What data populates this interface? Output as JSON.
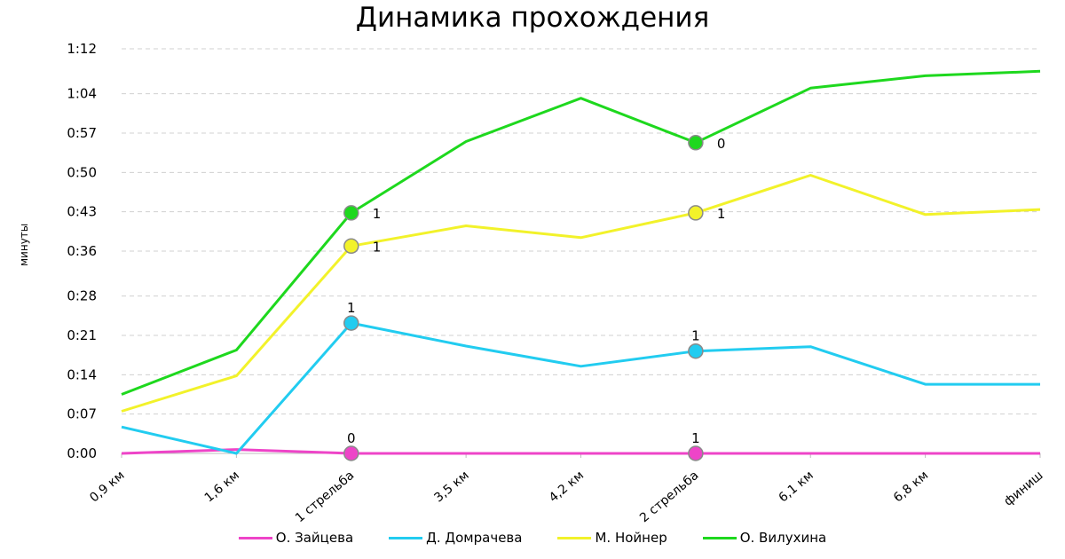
{
  "chart_data": {
    "type": "line",
    "title": "Динамика прохождения",
    "ylabel": "минуты",
    "xlabel": "",
    "categories": [
      "0,9 км",
      "1,6 км",
      "1 стрельба",
      "3,5 км",
      "4,2 км",
      "2 стрельба",
      "6,1 км",
      "6,8 км",
      "финиш"
    ],
    "y_unit": "seconds",
    "y_ticks": [
      {
        "value": 0,
        "label": "0:00"
      },
      {
        "value": 7,
        "label": "0:07"
      },
      {
        "value": 14,
        "label": "0:14"
      },
      {
        "value": 21,
        "label": "0:21"
      },
      {
        "value": 28,
        "label": "0:28"
      },
      {
        "value": 36,
        "label": "0:36"
      },
      {
        "value": 43,
        "label": "0:43"
      },
      {
        "value": 50,
        "label": "0:50"
      },
      {
        "value": 57,
        "label": "0:57"
      },
      {
        "value": 64,
        "label": "1:04"
      },
      {
        "value": 72,
        "label": "1:12"
      }
    ],
    "ylim": [
      0,
      72
    ],
    "grid": true,
    "legend_position": "bottom",
    "series": [
      {
        "name": "О. Зайцева",
        "color": "#ee44c8",
        "values": [
          0,
          0.7,
          0,
          0,
          0,
          0,
          0,
          0,
          0
        ],
        "markers": [
          {
            "index": 2,
            "label": "0"
          },
          {
            "index": 5,
            "label": "1"
          }
        ]
      },
      {
        "name": "Д. Домрачева",
        "color": "#22ccf0",
        "values": [
          4.7,
          0,
          23.2,
          19.1,
          15.5,
          18.2,
          19,
          12.3,
          12.3
        ],
        "markers": [
          {
            "index": 2,
            "label": "1"
          },
          {
            "index": 5,
            "label": "1"
          }
        ]
      },
      {
        "name": "М. Нойнер",
        "color": "#f2f22a",
        "values": [
          7.5,
          13.8,
          36.9,
          40.5,
          38.4,
          42.8,
          49.5,
          42.5,
          43.4
        ],
        "markers": [
          {
            "index": 2,
            "label": "1"
          },
          {
            "index": 5,
            "label": "1"
          }
        ]
      },
      {
        "name": "О. Вилухина",
        "color": "#1ed81e",
        "values": [
          10.5,
          18.4,
          42.8,
          55.5,
          63.2,
          55.3,
          65,
          67.2,
          68
        ],
        "markers": [
          {
            "index": 2,
            "label": "1"
          },
          {
            "index": 5,
            "label": "0"
          }
        ]
      }
    ]
  }
}
